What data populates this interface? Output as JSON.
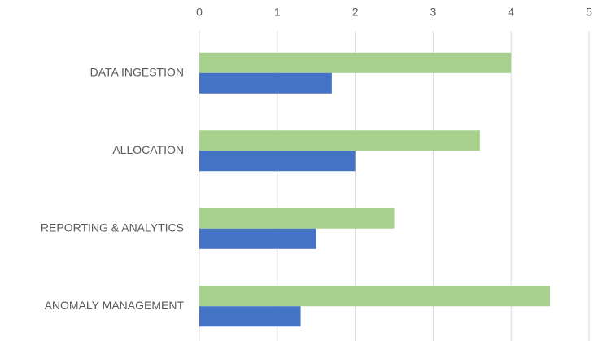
{
  "chart_data": {
    "type": "bar",
    "orientation": "horizontal",
    "categories": [
      "DATA INGESTION",
      "ALLOCATION",
      "REPORTING & ANALYTICS",
      "ANOMALY MANAGEMENT"
    ],
    "series": [
      {
        "color": "#a9d18e",
        "values": [
          4,
          3.6,
          2.5,
          4.5
        ]
      },
      {
        "color": "#4472c4",
        "values": [
          1.7,
          2,
          1.5,
          1.3
        ]
      }
    ],
    "xlim": [
      0,
      5
    ],
    "xticks": [
      0,
      1,
      2,
      3,
      4,
      5
    ],
    "grid": true
  }
}
